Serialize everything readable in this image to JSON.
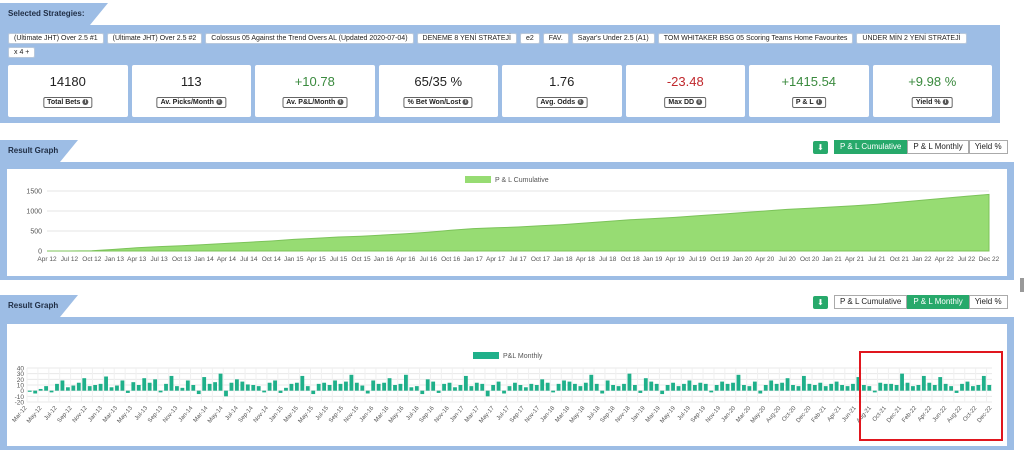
{
  "strategies": {
    "title": "Selected Strategies:",
    "chips": [
      "(Ultimate JHT) Over 2.5 #1",
      "(Ultimate JHT) Over 2.5 #2",
      "Colossus 05 Against the Trend Overs AL (Updated 2020-07-04)",
      "DENEME 8 YENİ STRATEJİ",
      "e2",
      "FAV.",
      "Sayar's Under 2.5 (A1)",
      "TOM WHITAKER BSG 05 Scoring Teams Home Favourites",
      "UNDER MİN 2 YENİ STRATEJİ",
      "x 4 +"
    ],
    "stats": [
      {
        "value": "14180",
        "label": "Total Bets",
        "tone": "neutral"
      },
      {
        "value": "113",
        "label": "Av. Picks/Month",
        "tone": "neutral"
      },
      {
        "value": "+10.78",
        "label": "Av. P&L/Month",
        "tone": "pos"
      },
      {
        "value": "65/35 %",
        "label": "% Bet Won/Lost",
        "tone": "neutral"
      },
      {
        "value": "1.76",
        "label": "Avg. Odds",
        "tone": "neutral"
      },
      {
        "value": "-23.48",
        "label": "Max DD",
        "tone": "neg"
      },
      {
        "value": "+1415.54",
        "label": "P & L",
        "tone": "pos"
      },
      {
        "value": "+9.98 %",
        "label": "Yield %",
        "tone": "pos"
      }
    ]
  },
  "result_graph_1": {
    "title": "Result Graph",
    "tabs": [
      "P & L Cumulative",
      "P & L Monthly",
      "Yield %"
    ],
    "active_tab": 0
  },
  "result_graph_2": {
    "title": "Result Graph",
    "tabs": [
      "P & L Cumulative",
      "P & L Monthly",
      "Yield %"
    ],
    "active_tab": 1
  },
  "icons": {
    "download": "download-icon",
    "info": "info-icon"
  },
  "colors": {
    "accent": "#27a96b",
    "cumulative_fill": "#97dc73",
    "monthly_bar": "#1fb08a",
    "highlight": "#e0161e"
  },
  "chart_data": [
    {
      "type": "area",
      "title": "",
      "legend": "P & L Cumulative",
      "legend_position": "top",
      "grid": true,
      "ylim": [
        0,
        1500
      ],
      "yticks": [
        0,
        500,
        1000,
        1500
      ],
      "xtick_labels": [
        "Apr 12",
        "Jul 12",
        "Oct 12",
        "Jan 13",
        "Apr 13",
        "Jul 13",
        "Oct 13",
        "Jan 14",
        "Apr 14",
        "Jul 14",
        "Oct 14",
        "Jan 15",
        "Apr 15",
        "Jul 15",
        "Oct 15",
        "Jan 16",
        "Apr 16",
        "Jul 16",
        "Oct 16",
        "Jan 17",
        "Apr 17",
        "Jul 17",
        "Oct 17",
        "Jan 18",
        "Apr 18",
        "Jul 18",
        "Oct 18",
        "Jan 19",
        "Apr 19",
        "Jul 19",
        "Oct 19",
        "Jan 20",
        "Apr 20",
        "Jul 20",
        "Oct 20",
        "Jan 21",
        "Apr 21",
        "Jul 21",
        "Oct 21",
        "Jan 22",
        "Apr 22",
        "Jul 22",
        "Dec 22"
      ],
      "x": [
        "Apr 12",
        "Jul 12",
        "Oct 12",
        "Jan 13",
        "Apr 13",
        "Jul 13",
        "Oct 13",
        "Jan 14",
        "Apr 14",
        "Jul 14",
        "Oct 14",
        "Jan 15",
        "Apr 15",
        "Jul 15",
        "Oct 15",
        "Jan 16",
        "Apr 16",
        "Jul 16",
        "Oct 16",
        "Jan 17",
        "Apr 17",
        "Jul 17",
        "Oct 17",
        "Jan 18",
        "Apr 18",
        "Jul 18",
        "Oct 18",
        "Jan 19",
        "Apr 19",
        "Jul 19",
        "Oct 19",
        "Jan 20",
        "Apr 20",
        "Jul 20",
        "Oct 20",
        "Jan 21",
        "Apr 21",
        "Jul 21",
        "Oct 21",
        "Jan 22",
        "Apr 22",
        "Jul 22",
        "Dec 22"
      ],
      "values": [
        0,
        0,
        5,
        40,
        80,
        110,
        130,
        160,
        190,
        220,
        250,
        290,
        320,
        350,
        370,
        400,
        430,
        470,
        520,
        560,
        580,
        600,
        630,
        660,
        700,
        740,
        780,
        810,
        840,
        880,
        920,
        960,
        1000,
        1040,
        1070,
        1100,
        1130,
        1170,
        1220,
        1270,
        1320,
        1370,
        1416
      ]
    },
    {
      "type": "bar",
      "title": "",
      "legend": "P&L Monthly",
      "legend_position": "top",
      "grid": true,
      "ylim": [
        -20,
        40
      ],
      "yticks": [
        -20,
        -10,
        0,
        10,
        20,
        30,
        40
      ],
      "xtick_labels": [
        "Mar-12",
        "May-12",
        "Jul-12",
        "Sep-12",
        "Nov-12",
        "Jan-13",
        "Mar-13",
        "May-13",
        "Jul-13",
        "Sep-13",
        "Nov-13",
        "Jan-14",
        "Mar-14",
        "May-14",
        "Jul-14",
        "Sep-14",
        "Nov-14",
        "Jan-15",
        "Mar-15",
        "May-15",
        "Jul-15",
        "Sep-15",
        "Nov-15",
        "Jan-16",
        "Mar-16",
        "May-16",
        "Jul-16",
        "Sep-16",
        "Nov-16",
        "Jan-17",
        "Mar-17",
        "May-17",
        "Jul-17",
        "Sep-17",
        "Nov-17",
        "Jan-18",
        "Mar-18",
        "May-18",
        "Jul-18",
        "Sep-18",
        "Nov-18",
        "Jan-19",
        "Mar-19",
        "May-19",
        "Jul-19",
        "Sep-19",
        "Nov-19",
        "Jan-20",
        "Mar-20",
        "May-20",
        "Aug-20",
        "Oct-20",
        "Dec-20",
        "Feb-21",
        "Apr-21",
        "Jun-21",
        "Aug-21",
        "Oct-21",
        "Dec-21",
        "Feb-22",
        "Apr-22",
        "Jun-22",
        "Aug-22",
        "Oct-22",
        "Dec-22"
      ],
      "values": [
        -2,
        -5,
        3,
        8,
        -3,
        12,
        18,
        6,
        9,
        14,
        22,
        8,
        10,
        12,
        25,
        6,
        9,
        18,
        -4,
        15,
        10,
        22,
        14,
        20,
        -3,
        12,
        26,
        8,
        5,
        18,
        10,
        -6,
        24,
        12,
        15,
        30,
        -10,
        14,
        20,
        16,
        11,
        10,
        8,
        -3,
        14,
        18,
        -4,
        5,
        12,
        14,
        26,
        8,
        -6,
        12,
        14,
        10,
        18,
        12,
        16,
        28,
        14,
        9,
        -5,
        18,
        12,
        14,
        22,
        10,
        12,
        28,
        6,
        8,
        -6,
        20,
        16,
        -4,
        12,
        14,
        6,
        10,
        26,
        8,
        14,
        12,
        -10,
        10,
        16,
        -5,
        8,
        14,
        10,
        6,
        12,
        10,
        20,
        14,
        -3,
        12,
        18,
        16,
        12,
        8,
        14,
        28,
        12,
        -5,
        18,
        10,
        8,
        12,
        30,
        10,
        -4,
        22,
        16,
        12,
        -6,
        10,
        14,
        8,
        12,
        18,
        10,
        14,
        12,
        -3,
        10,
        16,
        12,
        14,
        28,
        10,
        8,
        16,
        -5,
        10,
        18,
        12,
        14,
        22,
        10,
        8,
        26,
        12,
        10,
        14,
        8,
        12,
        16,
        10,
        8,
        12,
        24,
        10,
        8,
        -3,
        14,
        12,
        12,
        10,
        30,
        14,
        8,
        10,
        26,
        14,
        10,
        24,
        12,
        8,
        -4,
        12,
        16,
        8,
        10,
        26,
        10
      ],
      "highlighted_range": [
        "Jun-21",
        "Dec-22"
      ]
    }
  ]
}
